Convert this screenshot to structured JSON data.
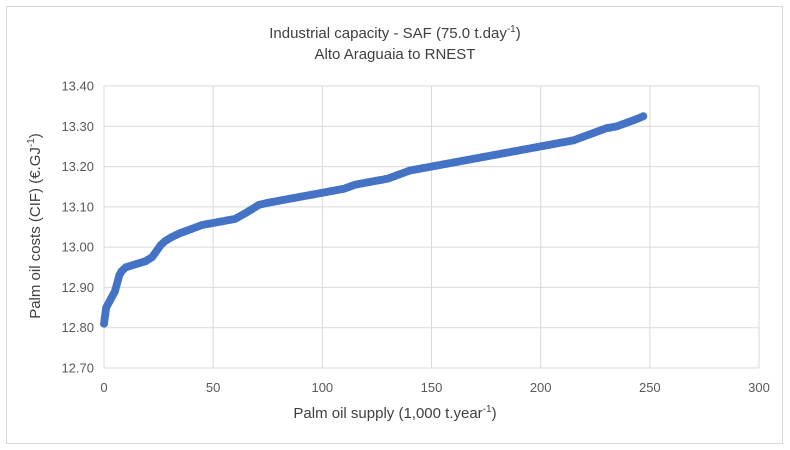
{
  "chart_data": {
    "type": "scatter",
    "title_line1": "Industrial capacity - SAF (75.0 t.day",
    "title_line1_sup": "-1",
    "title_line1_end": ")",
    "title_line2": "Alto Araguaia to RNEST",
    "xlabel": "Palm oil supply (1,000 t.year",
    "xlabel_sup": "-1",
    "xlabel_end": ")",
    "ylabel": "Palm oil costs (CIF) (€.GJ",
    "ylabel_sup": "-1",
    "ylabel_end": ")",
    "xlim": [
      0,
      300
    ],
    "ylim": [
      12.7,
      13.4
    ],
    "x_ticks": [
      "0",
      "50",
      "100",
      "150",
      "200",
      "250",
      "300"
    ],
    "y_ticks": [
      "12.70",
      "12.80",
      "12.90",
      "13.00",
      "13.10",
      "13.20",
      "13.30",
      "13.40"
    ],
    "grid": true,
    "legend": "none",
    "marker_color": "#4472c4",
    "series": [
      {
        "points": [
          [
            0.0,
            12.81
          ],
          [
            0.5,
            12.83
          ],
          [
            1.0,
            12.85
          ],
          [
            2.0,
            12.86
          ],
          [
            3.0,
            12.87
          ],
          [
            4.0,
            12.88
          ],
          [
            5.0,
            12.89
          ],
          [
            6.0,
            12.91
          ],
          [
            7.0,
            12.93
          ],
          [
            8.0,
            12.94
          ],
          [
            10.0,
            12.95
          ],
          [
            13.0,
            12.955
          ],
          [
            16.0,
            12.96
          ],
          [
            19.0,
            12.965
          ],
          [
            22.0,
            12.975
          ],
          [
            24.0,
            12.99
          ],
          [
            26.0,
            13.005
          ],
          [
            28.0,
            13.015
          ],
          [
            31.0,
            13.025
          ],
          [
            35.0,
            13.035
          ],
          [
            40.0,
            13.045
          ],
          [
            45.0,
            13.055
          ],
          [
            50.0,
            13.06
          ],
          [
            55.0,
            13.065
          ],
          [
            60.0,
            13.07
          ],
          [
            65.0,
            13.085
          ],
          [
            68.0,
            13.095
          ],
          [
            71.0,
            13.105
          ],
          [
            75.0,
            13.11
          ],
          [
            80.0,
            13.115
          ],
          [
            85.0,
            13.12
          ],
          [
            90.0,
            13.125
          ],
          [
            95.0,
            13.13
          ],
          [
            100.0,
            13.135
          ],
          [
            105.0,
            13.14
          ],
          [
            110.0,
            13.145
          ],
          [
            115.0,
            13.155
          ],
          [
            120.0,
            13.16
          ],
          [
            125.0,
            13.165
          ],
          [
            130.0,
            13.17
          ],
          [
            135.0,
            13.18
          ],
          [
            140.0,
            13.19
          ],
          [
            145.0,
            13.195
          ],
          [
            150.0,
            13.2
          ],
          [
            155.0,
            13.205
          ],
          [
            160.0,
            13.21
          ],
          [
            165.0,
            13.215
          ],
          [
            170.0,
            13.22
          ],
          [
            175.0,
            13.225
          ],
          [
            180.0,
            13.23
          ],
          [
            185.0,
            13.235
          ],
          [
            190.0,
            13.24
          ],
          [
            195.0,
            13.245
          ],
          [
            200.0,
            13.25
          ],
          [
            205.0,
            13.255
          ],
          [
            210.0,
            13.26
          ],
          [
            215.0,
            13.265
          ],
          [
            220.0,
            13.275
          ],
          [
            225.0,
            13.285
          ],
          [
            230.0,
            13.295
          ],
          [
            235.0,
            13.3
          ],
          [
            240.0,
            13.31
          ],
          [
            245.0,
            13.32
          ],
          [
            247.0,
            13.325
          ]
        ]
      }
    ]
  }
}
